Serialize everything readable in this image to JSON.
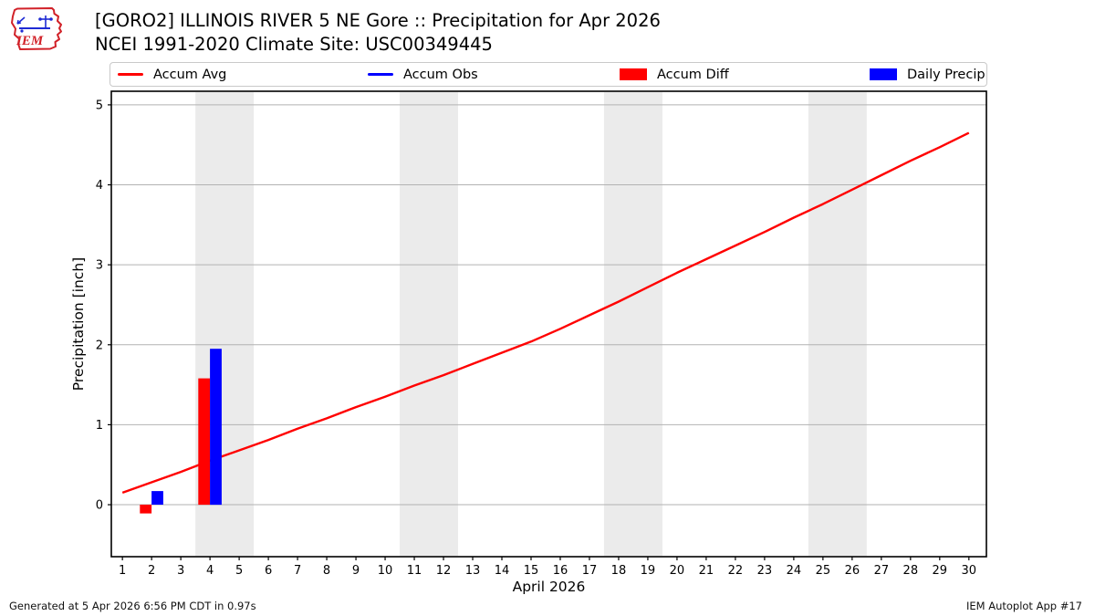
{
  "header": {
    "title_line1": "[GORO2] ILLINOIS RIVER 5 NE Gore :: Precipitation for Apr 2026",
    "title_line2": "NCEI 1991-2020 Climate Site: USC00349445",
    "logo_text": "IEM"
  },
  "legend": {
    "items": [
      {
        "label": "Accum Avg",
        "swatch": "line",
        "color": "#ff0000"
      },
      {
        "label": "Accum Obs",
        "swatch": "line",
        "color": "#0000ff"
      },
      {
        "label": "Accum Diff",
        "swatch": "rect",
        "color": "#ff0000"
      },
      {
        "label": "Daily Precip",
        "swatch": "rect",
        "color": "#0000ff"
      }
    ]
  },
  "chart_data": {
    "type": "mixed",
    "title": "[GORO2] ILLINOIS RIVER 5 NE Gore :: Precipitation for Apr 2026",
    "subtitle": "NCEI 1991-2020 Climate Site: USC00349445",
    "xlabel": "April 2026",
    "ylabel": "Precipitation [inch]",
    "x_ticks": [
      1,
      2,
      3,
      4,
      5,
      6,
      7,
      8,
      9,
      10,
      11,
      12,
      13,
      14,
      15,
      16,
      17,
      18,
      19,
      20,
      21,
      22,
      23,
      24,
      25,
      26,
      27,
      28,
      29,
      30
    ],
    "y_ticks": [
      0,
      1,
      2,
      3,
      4,
      5
    ],
    "xlim": [
      0.62,
      30.6
    ],
    "ylim": [
      -0.65,
      5.17
    ],
    "grid": "horizontal",
    "grid_color": "#b2b2b2",
    "band_color": "#ebebeb",
    "weekend_bands_days": [
      [
        3.5,
        5.5
      ],
      [
        10.5,
        12.5
      ],
      [
        17.5,
        19.5
      ],
      [
        24.5,
        26.5
      ]
    ],
    "bar_width_days": 0.4,
    "series": [
      {
        "name": "Accum Avg",
        "type": "line",
        "color": "#ff0000",
        "points": [
          [
            1,
            0.15
          ],
          [
            2,
            0.28
          ],
          [
            3,
            0.41
          ],
          [
            4,
            0.55
          ],
          [
            5,
            0.68
          ],
          [
            6,
            0.81
          ],
          [
            7,
            0.95
          ],
          [
            8,
            1.08
          ],
          [
            9,
            1.22
          ],
          [
            10,
            1.35
          ],
          [
            11,
            1.49
          ],
          [
            12,
            1.62
          ],
          [
            13,
            1.76
          ],
          [
            14,
            1.9
          ],
          [
            15,
            2.04
          ],
          [
            16,
            2.2
          ],
          [
            17,
            2.37
          ],
          [
            18,
            2.54
          ],
          [
            19,
            2.72
          ],
          [
            20,
            2.9
          ],
          [
            21,
            3.07
          ],
          [
            22,
            3.24
          ],
          [
            23,
            3.41
          ],
          [
            24,
            3.59
          ],
          [
            25,
            3.76
          ],
          [
            26,
            3.94
          ],
          [
            27,
            4.12
          ],
          [
            28,
            4.3
          ],
          [
            29,
            4.47
          ],
          [
            30,
            4.65
          ]
        ]
      },
      {
        "name": "Accum Obs",
        "type": "line",
        "color": "#0000ff",
        "points": []
      },
      {
        "name": "Accum Diff",
        "type": "bar",
        "color": "#ff0000",
        "bar_side": "left",
        "points": [
          [
            2,
            -0.11
          ],
          [
            4,
            1.58
          ]
        ]
      },
      {
        "name": "Daily Precip",
        "type": "bar",
        "color": "#0000ff",
        "bar_side": "right",
        "points": [
          [
            2,
            0.17
          ],
          [
            4,
            1.95
          ]
        ]
      }
    ]
  },
  "footer": {
    "left": "Generated at 5 Apr 2026 6:56 PM CDT in 0.97s",
    "right": "IEM Autoplot App #17"
  }
}
